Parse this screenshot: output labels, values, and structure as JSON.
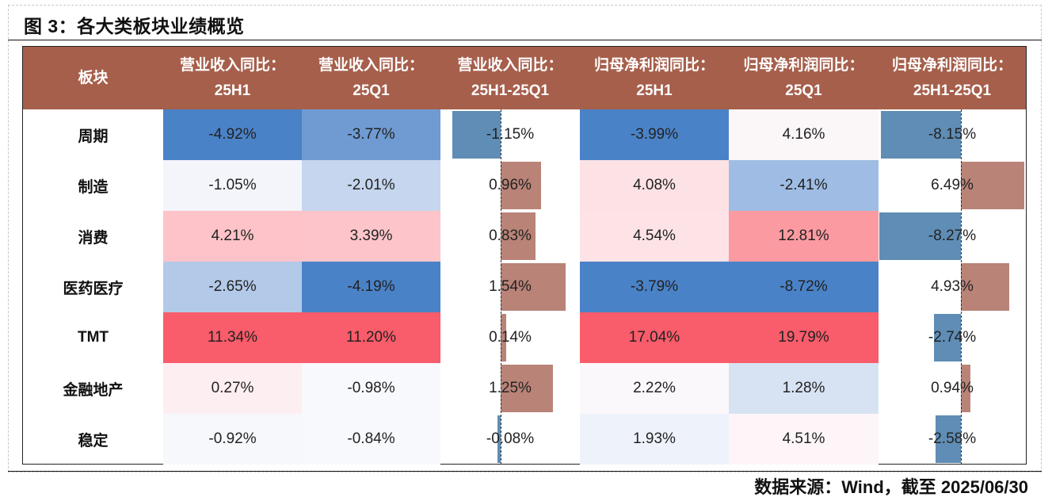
{
  "figure_title": "图 3：各大类板块业绩概览",
  "source": "数据来源：Wind，截至 2025/06/30",
  "colors": {
    "header_bg": "#a65f4b",
    "pos_bar": "#b98378",
    "neg_bar": "#5f8db5"
  },
  "chart_data": {
    "type": "table",
    "columns": [
      {
        "label_line1": "板块",
        "label_line2": ""
      },
      {
        "label_line1": "营业收入同比：",
        "label_line2": "25H1"
      },
      {
        "label_line1": "营业收入同比：",
        "label_line2": "25Q1"
      },
      {
        "label_line1": "营业收入同比：",
        "label_line2": "25H1-25Q1"
      },
      {
        "label_line1": "归母净利润同比：",
        "label_line2": "25H1"
      },
      {
        "label_line1": "归母净利润同比：",
        "label_line2": "25Q1"
      },
      {
        "label_line1": "归母净利润同比：",
        "label_line2": "25H1-25Q1"
      }
    ],
    "rows": [
      {
        "sector": "周期",
        "values": [
          "-4.92%",
          "-3.77%",
          "-1.15%",
          "-3.99%",
          "4.16%",
          "-8.15%"
        ],
        "nums": [
          -4.92,
          -3.77,
          -1.15,
          -3.99,
          4.16,
          -8.15
        ],
        "bg": [
          "#4a82c7",
          "#6f9bd2",
          null,
          "#4a82c7",
          "#fbf6f8",
          null
        ]
      },
      {
        "sector": "制造",
        "values": [
          "-1.05%",
          "-2.01%",
          "0.96%",
          "4.08%",
          "-2.41%",
          "6.49%"
        ],
        "nums": [
          -1.05,
          -2.01,
          0.96,
          4.08,
          -2.41,
          6.49
        ],
        "bg": [
          "#f4f5fb",
          "#c5d6ee",
          null,
          "#fde2e5",
          "#9fbde4",
          null
        ]
      },
      {
        "sector": "消费",
        "values": [
          "4.21%",
          "3.39%",
          "0.83%",
          "4.54%",
          "12.81%",
          "-8.27%"
        ],
        "nums": [
          4.21,
          3.39,
          0.83,
          4.54,
          12.81,
          -8.27
        ],
        "bg": [
          "#fdc3c8",
          "#fdc5ca",
          null,
          "#fde3e6",
          "#fc9aa1",
          null
        ]
      },
      {
        "sector": "医药医疗",
        "values": [
          "-2.65%",
          "-4.19%",
          "1.54%",
          "-3.79%",
          "-8.72%",
          "4.93%"
        ],
        "nums": [
          -2.65,
          -4.19,
          1.54,
          -3.79,
          -8.72,
          4.93
        ],
        "bg": [
          "#b3c9e8",
          "#4a82c7",
          null,
          "#4a82c7",
          "#4a82c7",
          null
        ]
      },
      {
        "sector": "TMT",
        "values": [
          "11.34%",
          "11.20%",
          "0.14%",
          "17.04%",
          "19.79%",
          "-2.74%"
        ],
        "nums": [
          11.34,
          11.2,
          0.14,
          17.04,
          19.79,
          -2.74
        ],
        "bg": [
          "#f95c6a",
          "#f95c6a",
          null,
          "#f95c6a",
          "#f95c6a",
          null
        ]
      },
      {
        "sector": "金融地产",
        "values": [
          "0.27%",
          "-0.98%",
          "1.25%",
          "2.22%",
          "1.28%",
          "0.94%"
        ],
        "nums": [
          0.27,
          -0.98,
          1.25,
          2.22,
          1.28,
          0.94
        ],
        "bg": [
          "#fdeef1",
          "#f8f9fd",
          null,
          "#fbf8fb",
          "#d7e3f3",
          null
        ]
      },
      {
        "sector": "稳定",
        "values": [
          "-0.92%",
          "-0.84%",
          "-0.08%",
          "1.93%",
          "4.51%",
          "-2.58%"
        ],
        "nums": [
          -0.92,
          -0.84,
          -0.08,
          1.93,
          4.51,
          -2.58
        ],
        "bg": [
          "#f7f8fc",
          "#f8f9fd",
          null,
          "#eef3fb",
          "#fdf5f7",
          null
        ]
      }
    ]
  }
}
